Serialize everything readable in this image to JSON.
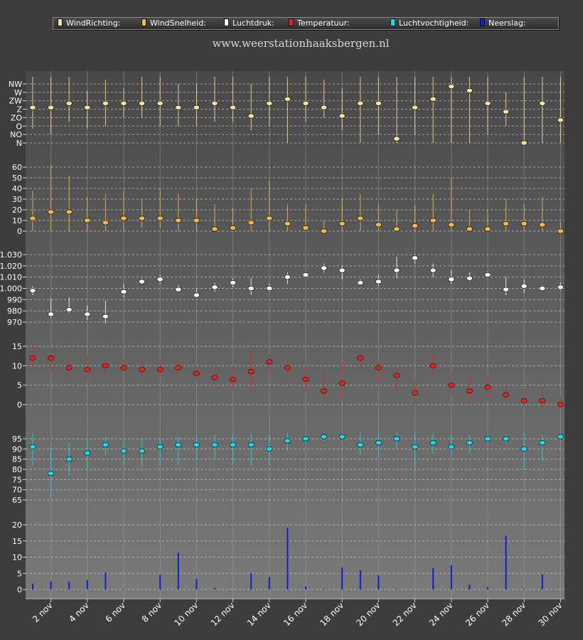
{
  "site_title": "www.weerstationhaaksbergen.nl",
  "legend": [
    {
      "label": "WindRichting:",
      "color": "#f6e39c"
    },
    {
      "label": "WindSnelheid:",
      "color": "#f5b84a"
    },
    {
      "label": "Luchtdruk:",
      "color": "#ffffff"
    },
    {
      "label": "Temperatuur:",
      "color": "#e8231e"
    },
    {
      "label": "Luchtvochtigheid:",
      "color": "#16dcec"
    },
    {
      "label": "Neerslag:",
      "color": "#1020d0"
    }
  ],
  "chart_data": {
    "type": "scatter",
    "x": [
      "1 nov",
      "2 nov",
      "3 nov",
      "4 nov",
      "5 nov",
      "6 nov",
      "7 nov",
      "8 nov",
      "9 nov",
      "10 nov",
      "11 nov",
      "12 nov",
      "13 nov",
      "14 nov",
      "15 nov",
      "16 nov",
      "17 nov",
      "18 nov",
      "19 nov",
      "20 nov",
      "21 nov",
      "22 nov",
      "23 nov",
      "24 nov",
      "25 nov",
      "26 nov",
      "27 nov",
      "28 nov",
      "29 nov",
      "30 nov"
    ],
    "x_tick_labels": [
      "2 nov",
      "4 nov",
      "6 nov",
      "8 nov",
      "10 nov",
      "12 nov",
      "14 nov",
      "16 nov",
      "18 nov",
      "20 nov",
      "22 nov",
      "24 nov",
      "26 nov",
      "28 nov",
      "30 nov"
    ],
    "panels": [
      {
        "name": "WindRichting",
        "color": "#f6e39c",
        "y_tick_labels": [
          "N",
          "NO",
          "O",
          "ZO",
          "Z",
          "ZW",
          "W",
          "NW"
        ],
        "ylim": [
          0,
          7
        ],
        "values": [
          4.2,
          4.2,
          4.7,
          4.2,
          4.7,
          4.7,
          4.7,
          4.7,
          4.2,
          4.2,
          4.7,
          4.2,
          3.2,
          4.7,
          5.2,
          4.7,
          4.2,
          3.2,
          4.7,
          4.7,
          0.5,
          4.2,
          5.2,
          6.7,
          6.2,
          4.7,
          3.7,
          0,
          4.7,
          2.7
        ],
        "low": [
          1.7,
          1,
          2.5,
          1.7,
          2,
          3,
          3,
          2,
          2,
          2,
          2.5,
          2.5,
          1.5,
          2,
          0,
          2.5,
          3,
          1.5,
          0,
          1,
          0,
          1,
          0,
          0,
          0,
          1,
          2,
          0,
          0,
          0
        ],
        "high": [
          8,
          8,
          8,
          6.2,
          7.5,
          6.5,
          8,
          8,
          7,
          7,
          8,
          8,
          7,
          8,
          8,
          8,
          7.5,
          6.5,
          8,
          8,
          8,
          8,
          8,
          8,
          8,
          8,
          6,
          8,
          8,
          8
        ]
      },
      {
        "name": "WindSnelheid",
        "color": "#f5b84a",
        "y_tick_labels": [
          "0",
          "10",
          "20",
          "30",
          "40",
          "50",
          "60"
        ],
        "ylim": [
          0,
          60
        ],
        "values": [
          12,
          18,
          18,
          10,
          8,
          12,
          12,
          12,
          10,
          10,
          2,
          3,
          8,
          12,
          7,
          3,
          0,
          7,
          12,
          6,
          2,
          5,
          10,
          6,
          2,
          2,
          7,
          7,
          6,
          0
        ],
        "low": [
          0,
          0,
          0,
          0,
          0,
          0,
          3,
          3,
          0,
          0,
          0,
          0,
          0,
          0,
          0,
          0,
          0,
          0,
          0,
          0,
          0,
          0,
          0,
          0,
          0,
          0,
          0,
          0,
          0,
          0
        ],
        "high": [
          38,
          62,
          52,
          32,
          35,
          38,
          30,
          40,
          35,
          30,
          25,
          22,
          40,
          47,
          25,
          25,
          10,
          30,
          35,
          25,
          20,
          25,
          35,
          50,
          20,
          20,
          30,
          25,
          32,
          8
        ]
      },
      {
        "name": "Luchtdruk",
        "color": "#ffffff",
        "y_tick_labels": [
          "970",
          "980",
          "990",
          "1.000",
          "1.010",
          "1.020",
          "1.030"
        ],
        "ylim": [
          970,
          1030
        ],
        "values": [
          998,
          977,
          981,
          977,
          975,
          997,
          1006,
          1008,
          999,
          994,
          1001,
          1005,
          1000,
          1000,
          1010,
          1012,
          1018,
          1016,
          1005,
          1006,
          1016,
          1027,
          1016,
          1008,
          1009,
          1012,
          999,
          1002,
          1000,
          1001
        ],
        "low": [
          994,
          974,
          978,
          972,
          969,
          992,
          1004,
          1004,
          997,
          992,
          997,
          1001,
          994,
          997,
          1004,
          1010,
          1014,
          1008,
          1004,
          1002,
          1009,
          1022,
          1010,
          1004,
          1006,
          1010,
          994,
          996,
          998,
          998
        ],
        "high": [
          1002,
          991,
          992,
          985,
          989,
          1004,
          1009,
          1012,
          1003,
          1000,
          1005,
          1009,
          1009,
          1004,
          1014,
          1014,
          1022,
          1020,
          1008,
          1012,
          1028,
          1030,
          1022,
          1016,
          1014,
          1015,
          1010,
          1008,
          1003,
          1005
        ]
      },
      {
        "name": "Temperatuur",
        "color": "#e8231e",
        "y_tick_labels": [
          "0",
          "5",
          "10",
          "15"
        ],
        "ylim": [
          0,
          15
        ],
        "values": [
          12,
          12,
          9.5,
          9,
          10,
          9.5,
          9,
          9,
          9.5,
          8,
          7,
          6.5,
          8.5,
          11,
          9.5,
          6.5,
          3.5,
          5.5,
          12,
          9.5,
          7.5,
          3,
          10,
          5,
          3.5,
          4.5,
          2.5,
          1,
          1,
          0
        ],
        "low": [
          9,
          8.5,
          7,
          6.5,
          8,
          8.5,
          7,
          7,
          7,
          6,
          4.5,
          3.5,
          3.5,
          8,
          7,
          3.5,
          1,
          1.5,
          9,
          5.5,
          3,
          -0.5,
          7,
          2.5,
          0,
          1,
          0.5,
          -1,
          -1,
          -1
        ],
        "high": [
          15,
          14.5,
          12.5,
          12.5,
          11,
          11.5,
          12,
          11.5,
          12,
          10,
          10,
          10,
          14,
          13,
          12,
          10,
          8,
          11,
          13,
          11,
          9.5,
          6,
          13,
          8,
          7.5,
          7.5,
          5,
          4,
          4.5,
          2
        ]
      },
      {
        "name": "Luchtvochtigheid",
        "color": "#16dcec",
        "y_tick_labels": [
          "65",
          "70",
          "75",
          "80",
          "85",
          "90",
          "95"
        ],
        "ylim": [
          65,
          95
        ],
        "values": [
          91,
          78,
          85,
          88,
          92,
          89,
          89,
          91,
          92,
          92,
          92,
          92,
          92,
          90,
          94,
          95,
          96,
          96,
          92,
          93,
          95,
          91,
          93,
          91,
          93,
          95,
          95,
          90,
          93,
          96
        ],
        "low": [
          82,
          66,
          77,
          80,
          87,
          82,
          81,
          82,
          82,
          85,
          85,
          82,
          82,
          82,
          89,
          92,
          94,
          94,
          87,
          86,
          90,
          80,
          88,
          87,
          88,
          93,
          93,
          80,
          84,
          94
        ],
        "high": [
          98,
          92,
          93,
          95,
          96,
          95,
          95,
          95,
          96,
          97,
          97,
          97,
          98,
          97,
          98,
          97,
          97,
          97,
          98,
          98,
          98,
          98,
          98,
          97,
          97,
          97,
          97,
          98,
          97,
          97
        ]
      },
      {
        "name": "Neerslag",
        "color": "#1020d0",
        "y_tick_labels": [
          "0",
          "5",
          "10",
          "15",
          "20"
        ],
        "ylim": [
          0,
          22
        ],
        "values": [
          2,
          2.7,
          2.7,
          3.2,
          5.8,
          0.2,
          0,
          5,
          12.5,
          3.6,
          0.6,
          0,
          5.5,
          4.2,
          21,
          1,
          0.2,
          7.5,
          6.6,
          4.8,
          0.2,
          0,
          7.3,
          8.3,
          1.7,
          0.8,
          18.3,
          0.2,
          5.2,
          0
        ]
      }
    ]
  }
}
